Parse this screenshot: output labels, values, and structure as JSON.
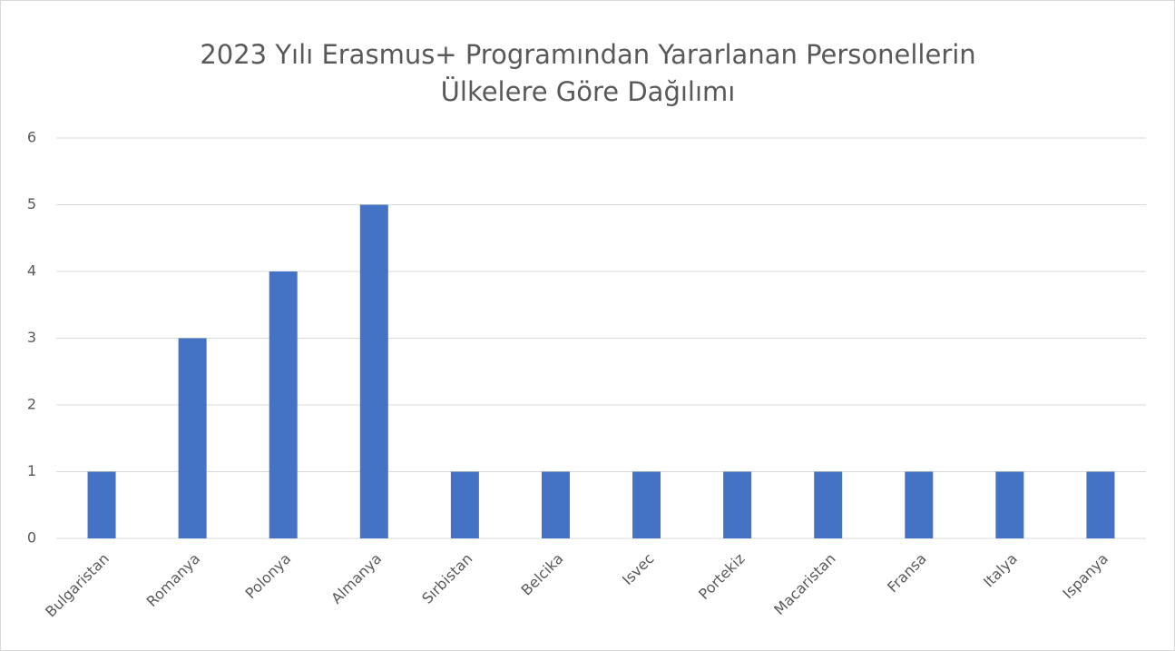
{
  "chart_data": {
    "type": "bar",
    "title": [
      "2023 Yılı Erasmus+ Programından Yararlanan Personellerin",
      "Ülkelere Göre Dağılımı"
    ],
    "categories": [
      "Bulgaristan",
      "Romanya",
      "Polonya",
      "Almanya",
      "Sırbistan",
      "Belcika",
      "Isvec",
      "Portekiz",
      "Macaristan",
      "Fransa",
      "Italya",
      "Ispanya"
    ],
    "values": [
      1,
      3,
      4,
      5,
      1,
      1,
      1,
      1,
      1,
      1,
      1,
      1
    ],
    "color": "#4472c4",
    "ylim": [
      0,
      6
    ],
    "yticks": [
      0,
      1,
      2,
      3,
      4,
      5,
      6
    ],
    "grid": true
  }
}
